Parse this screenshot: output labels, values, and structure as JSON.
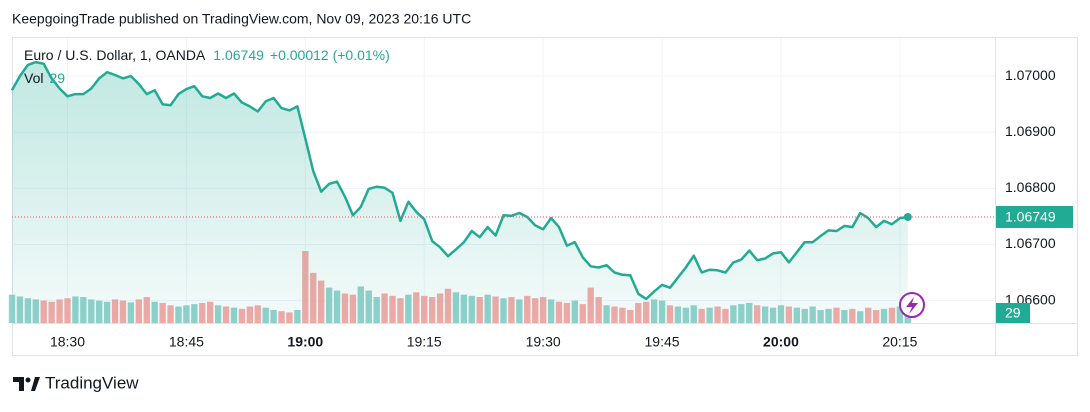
{
  "header": {
    "text": "KeepgoingTrade published on TradingView.com, Nov 09, 2023 20:16 UTC"
  },
  "chart_data": {
    "type": "line",
    "change": "+0.00012 (+0.01%)",
    "x": [
      "18:23",
      "18:24",
      "18:25",
      "18:26",
      "18:27",
      "18:28",
      "18:29",
      "18:30",
      "18:31",
      "18:32",
      "18:33",
      "18:34",
      "18:35",
      "18:36",
      "18:37",
      "18:38",
      "18:39",
      "18:40",
      "18:41",
      "18:42",
      "18:43",
      "18:44",
      "18:45",
      "18:46",
      "18:47",
      "18:48",
      "18:49",
      "18:50",
      "18:51",
      "18:52",
      "18:53",
      "18:54",
      "18:55",
      "18:56",
      "18:57",
      "18:58",
      "18:59",
      "19:00",
      "19:01",
      "19:02",
      "19:03",
      "19:04",
      "19:05",
      "19:06",
      "19:07",
      "19:08",
      "19:09",
      "19:10",
      "19:11",
      "19:12",
      "19:13",
      "19:14",
      "19:15",
      "19:16",
      "19:17",
      "19:18",
      "19:19",
      "19:20",
      "19:21",
      "19:22",
      "19:23",
      "19:24",
      "19:25",
      "19:26",
      "19:27",
      "19:28",
      "19:29",
      "19:30",
      "19:31",
      "19:32",
      "19:33",
      "19:34",
      "19:35",
      "19:36",
      "19:37",
      "19:38",
      "19:39",
      "19:40",
      "19:41",
      "19:42",
      "19:43",
      "19:44",
      "19:45",
      "19:46",
      "19:47",
      "19:48",
      "19:49",
      "19:50",
      "19:51",
      "19:52",
      "19:53",
      "19:54",
      "19:55",
      "19:56",
      "19:57",
      "19:58",
      "19:59",
      "20:00",
      "20:01",
      "20:02",
      "20:03",
      "20:04",
      "20:05",
      "20:06",
      "20:07",
      "20:08",
      "20:09",
      "20:10",
      "20:11",
      "20:12",
      "20:13",
      "20:14",
      "20:15",
      "20:16"
    ],
    "series": [
      {
        "name": "Euro / U.S. Dollar, 1, OANDA",
        "color": "#22ab94",
        "values": [
          1.06975,
          1.07,
          1.0702,
          1.07025,
          1.07022,
          1.06996,
          1.06978,
          1.06964,
          1.06968,
          1.06968,
          1.06978,
          1.06996,
          1.07007,
          1.07002,
          1.06996,
          1.07,
          1.06986,
          1.06968,
          1.06975,
          1.0695,
          1.06948,
          1.06968,
          1.06977,
          1.06982,
          1.06964,
          1.06961,
          1.06969,
          1.06961,
          1.06969,
          1.06953,
          1.06946,
          1.06937,
          1.06955,
          1.06961,
          1.06943,
          1.06939,
          1.06946,
          1.06889,
          1.06831,
          1.06794,
          1.06808,
          1.06812,
          1.06785,
          1.06752,
          1.06767,
          1.06799,
          1.06803,
          1.06801,
          1.06792,
          1.06742,
          1.06776,
          1.06758,
          1.06745,
          1.06706,
          1.06695,
          1.06679,
          1.06691,
          1.06704,
          1.06724,
          1.06713,
          1.06731,
          1.06716,
          1.06752,
          1.06751,
          1.06756,
          1.06749,
          1.06734,
          1.06727,
          1.06747,
          1.06731,
          1.06698,
          1.06704,
          1.06677,
          1.06661,
          1.06659,
          1.06663,
          1.0665,
          1.06646,
          1.06645,
          1.06612,
          1.06603,
          1.06616,
          1.06628,
          1.06623,
          1.06641,
          1.06659,
          1.0668,
          1.0665,
          1.06655,
          1.06654,
          1.0665,
          1.06668,
          1.06673,
          1.06689,
          1.06672,
          1.06675,
          1.06684,
          1.06686,
          1.06668,
          1.06686,
          1.06704,
          1.06704,
          1.06715,
          1.06725,
          1.06724,
          1.06733,
          1.06731,
          1.06756,
          1.06747,
          1.06731,
          1.06742,
          1.06736,
          1.06747,
          1.06749
        ]
      },
      {
        "name": "Vol",
        "axis": "y2",
        "color": "#92d2cc",
        "down_color": "#f7a9a7",
        "values": [
          48,
          45,
          42,
          40,
          38,
          36,
          40,
          42,
          45,
          44,
          40,
          38,
          36,
          40,
          38,
          35,
          40,
          44,
          36,
          34,
          30,
          28,
          30,
          32,
          34,
          36,
          30,
          28,
          26,
          24,
          28,
          30,
          26,
          22,
          20,
          18,
          22,
          122,
          85,
          72,
          60,
          55,
          50,
          48,
          62,
          55,
          44,
          50,
          46,
          42,
          48,
          52,
          46,
          44,
          50,
          58,
          52,
          48,
          46,
          44,
          48,
          45,
          42,
          44,
          40,
          46,
          42,
          44,
          40,
          36,
          34,
          38,
          32,
          60,
          44,
          30,
          28,
          26,
          22,
          34,
          36,
          40,
          38,
          30,
          28,
          26,
          30,
          24,
          26,
          28,
          24,
          30,
          32,
          34,
          30,
          28,
          26,
          30,
          28,
          26,
          24,
          28,
          22,
          24,
          26,
          22,
          24,
          20,
          26,
          22,
          24,
          26,
          28,
          29
        ]
      }
    ],
    "xlim": [
      "18:23",
      "20:27"
    ],
    "xticks": [
      "18:30",
      "18:45",
      "19:00",
      "19:15",
      "19:30",
      "19:45",
      "20:00",
      "20:15"
    ],
    "ylim": [
      1.0656,
      1.07068
    ],
    "yticks": [
      {
        "value": 1.066,
        "label": "1.06600"
      },
      {
        "value": 1.067,
        "label": "1.06700"
      },
      {
        "value": 1.068,
        "label": "1.06800"
      },
      {
        "value": 1.069,
        "label": "1.06900"
      },
      {
        "value": 1.07,
        "label": "1.07000"
      }
    ],
    "y2lim": [
      0,
      200
    ],
    "grid": true
  },
  "footer": {
    "brand": "TradingView"
  }
}
